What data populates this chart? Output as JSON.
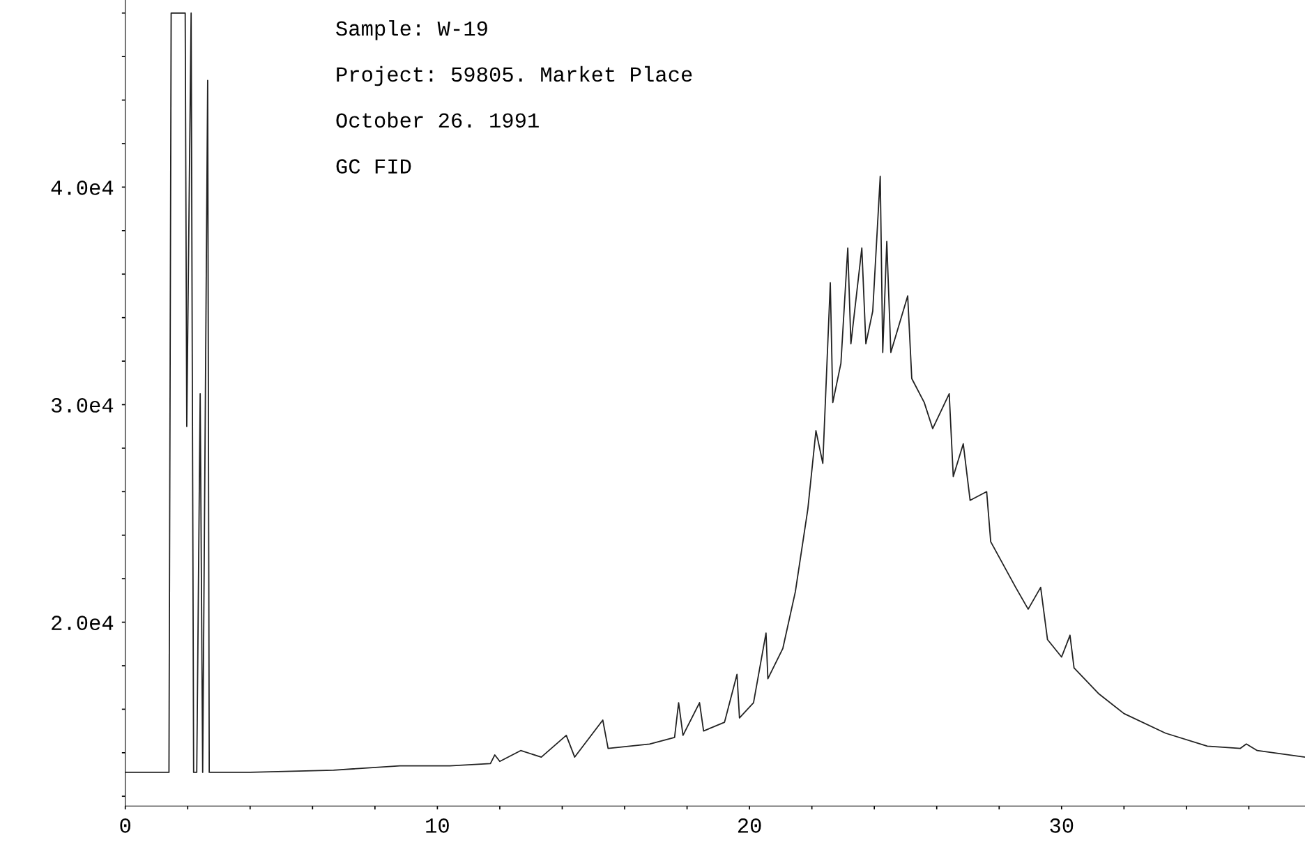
{
  "chart_data": {
    "type": "line",
    "annotations": [
      "Sample: W-19",
      "Project: 59805. Market Place",
      "October 26. 1991",
      "GC FID"
    ],
    "series": [
      {
        "color": "#222222",
        "x": [
          0,
          1.4,
          1.47,
          1.6,
          1.92,
          1.97,
          2.11,
          2.19,
          2.29,
          2.4,
          2.48,
          2.64,
          2.69,
          2.93,
          4.0,
          6.67,
          8.8,
          10.4,
          11.7,
          11.84,
          12.0,
          12.67,
          13.33,
          14.13,
          14.4,
          15.3,
          15.47,
          16.8,
          17.6,
          17.73,
          17.87,
          18.4,
          18.53,
          19.2,
          19.6,
          19.68,
          20.13,
          20.53,
          20.59,
          21.07,
          21.47,
          21.87,
          22.13,
          22.35,
          22.59,
          22.67,
          22.93,
          23.15,
          23.25,
          23.6,
          23.73,
          23.95,
          24.19,
          24.27,
          24.4,
          24.53,
          24.8,
          25.07,
          25.2,
          25.6,
          25.87,
          26.4,
          26.53,
          26.85,
          27.07,
          27.6,
          27.73,
          28.53,
          28.93,
          29.33,
          29.55,
          30.0,
          30.27,
          30.4,
          31.2,
          32.0,
          33.33,
          34.67,
          35.73,
          35.92,
          36.27,
          37.8
        ],
        "values": [
          13100,
          13100,
          48000,
          48000,
          48000,
          29000,
          48000,
          13100,
          13100,
          30500,
          13100,
          44900,
          13100,
          13100,
          13100,
          13200,
          13400,
          13400,
          13500,
          13900,
          13600,
          14100,
          13800,
          14800,
          13800,
          15500,
          14200,
          14400,
          14700,
          16300,
          14800,
          16300,
          15000,
          15400,
          17600,
          15600,
          16300,
          19500,
          17400,
          18800,
          21400,
          25200,
          28800,
          27300,
          35600,
          30100,
          31900,
          37200,
          32800,
          37200,
          32800,
          34300,
          40500,
          32400,
          37500,
          32400,
          33700,
          35000,
          31200,
          30100,
          28900,
          30500,
          26700,
          28200,
          25600,
          26000,
          23700,
          21600,
          20600,
          21600,
          19200,
          18400,
          19400,
          17900,
          16700,
          15800,
          14900,
          14300,
          14200,
          14400,
          14100,
          13800
        ]
      }
    ],
    "xlim": [
      0,
      37.8
    ],
    "ylim": [
      11550,
      48600
    ],
    "xticks": [
      0,
      {
        "value": 2,
        "label": null
      },
      {
        "value": 4,
        "label": null
      },
      {
        "value": 6,
        "label": null
      },
      {
        "value": 8,
        "label": null
      },
      10,
      {
        "value": 12,
        "label": null
      },
      {
        "value": 14,
        "label": null
      },
      {
        "value": 16,
        "label": null
      },
      {
        "value": 18,
        "label": null
      },
      20,
      {
        "value": 22,
        "label": null
      },
      {
        "value": 24,
        "label": null
      },
      {
        "value": 26,
        "label": null
      },
      {
        "value": 28,
        "label": null
      },
      30,
      {
        "value": 32,
        "label": null
      },
      {
        "value": 34,
        "label": null
      },
      {
        "value": 36,
        "label": null
      }
    ],
    "yticks": [
      {
        "value": 12000,
        "label": null
      },
      {
        "value": 14000,
        "label": null
      },
      {
        "value": 16000,
        "label": null
      },
      {
        "value": 18000,
        "label": null
      },
      {
        "value": 20000,
        "label": "2.0e4"
      },
      {
        "value": 22000,
        "label": null
      },
      {
        "value": 24000,
        "label": null
      },
      {
        "value": 26000,
        "label": null
      },
      {
        "value": 28000,
        "label": null
      },
      {
        "value": 30000,
        "label": "3.0e4"
      },
      {
        "value": 32000,
        "label": null
      },
      {
        "value": 34000,
        "label": null
      },
      {
        "value": 36000,
        "label": null
      },
      {
        "value": 38000,
        "label": null
      },
      {
        "value": 40000,
        "label": "4.0e4"
      },
      {
        "value": 42000,
        "label": null
      },
      {
        "value": 44000,
        "label": null
      },
      {
        "value": 46000,
        "label": null
      },
      {
        "value": 48000,
        "label": null
      }
    ],
    "grid": false,
    "legend": false
  }
}
